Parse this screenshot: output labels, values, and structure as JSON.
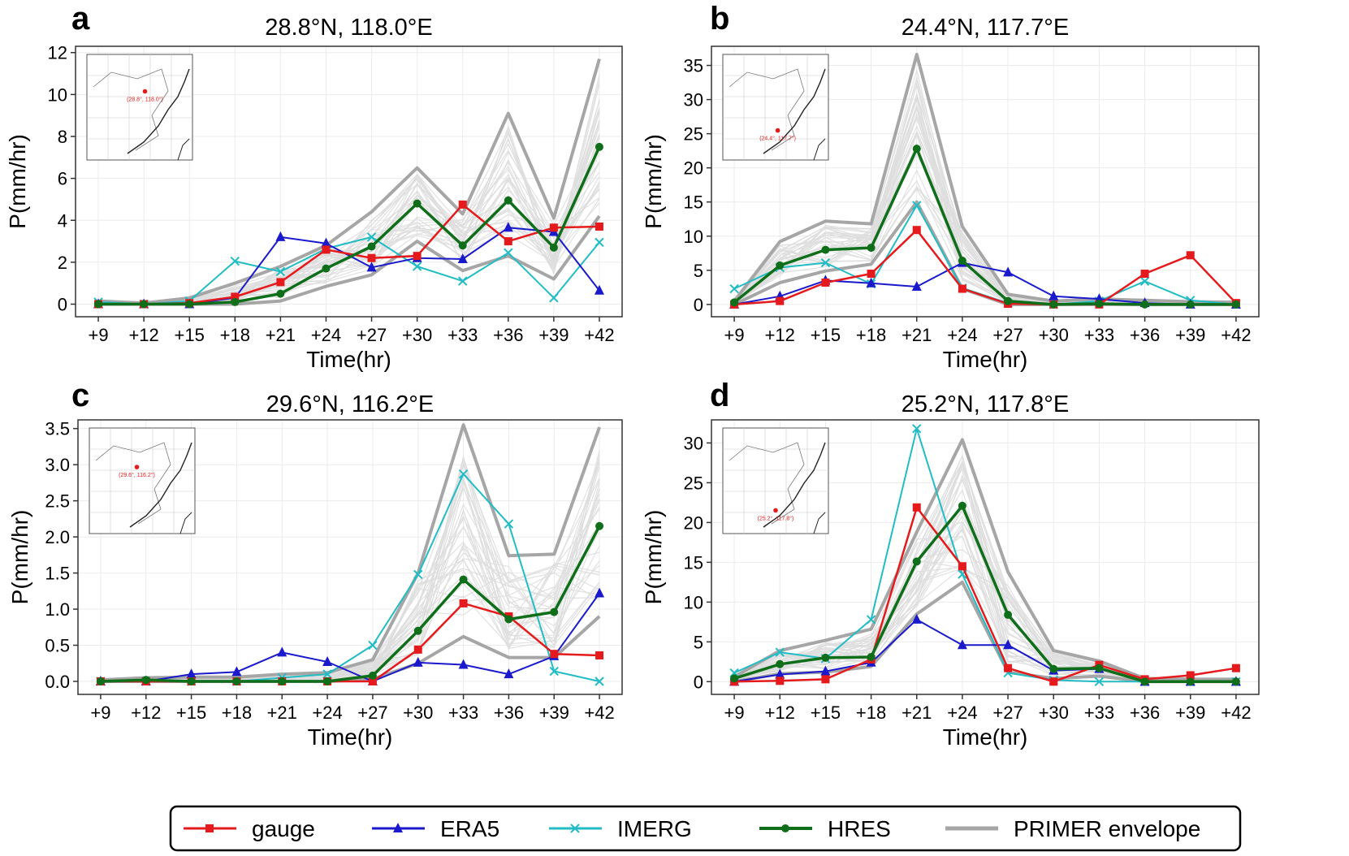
{
  "figure": {
    "legend": [
      {
        "key": "gauge",
        "label": "gauge",
        "color": "#e41a1c",
        "marker": "square"
      },
      {
        "key": "era5",
        "label": "ERA5",
        "color": "#1a1acc",
        "marker": "triangle"
      },
      {
        "key": "imerg",
        "label": "IMERG",
        "color": "#22bcc4",
        "marker": "x"
      },
      {
        "key": "hres",
        "label": "HRES",
        "color": "#0f6e1a",
        "marker": "circle"
      },
      {
        "key": "primer",
        "label": "PRIMER envelope",
        "color": "#a6a6a6",
        "marker": "none"
      }
    ]
  },
  "chart_data": [
    {
      "panel": "a",
      "type": "line",
      "title": "28.8°N, 118.0°E",
      "xlabel": "Time(hr)",
      "ylabel": "P(mm/hr)",
      "categories": [
        "+9",
        "+12",
        "+15",
        "+18",
        "+21",
        "+24",
        "+27",
        "+30",
        "+33",
        "+36",
        "+39",
        "+42"
      ],
      "ylim": [
        -0.6,
        12.3
      ],
      "yticks": [
        0,
        2,
        4,
        6,
        8,
        10,
        12
      ],
      "ytick_labels": [
        "0",
        "2",
        "4",
        "6",
        "8",
        "10",
        "12"
      ],
      "inset_label": "(28.8°, 118.0°)",
      "series": [
        {
          "name": "gauge",
          "values": [
            0.0,
            0.0,
            0.05,
            0.35,
            1.05,
            2.6,
            2.2,
            2.3,
            4.75,
            3.0,
            3.65,
            3.7
          ]
        },
        {
          "name": "ERA5",
          "values": [
            0.0,
            0.0,
            0.0,
            0.3,
            3.2,
            2.9,
            1.75,
            2.2,
            2.15,
            3.65,
            3.45,
            0.65
          ]
        },
        {
          "name": "IMERG",
          "values": [
            0.1,
            0.0,
            0.15,
            2.05,
            1.55,
            2.65,
            3.2,
            1.8,
            1.1,
            2.45,
            0.3,
            2.95
          ]
        },
        {
          "name": "HRES",
          "values": [
            0.0,
            0.0,
            0.0,
            0.1,
            0.5,
            1.7,
            2.75,
            4.8,
            2.8,
            4.95,
            2.7,
            7.5
          ]
        }
      ],
      "envelope": {
        "upper": [
          0.15,
          0.05,
          0.3,
          1.0,
          1.8,
          2.8,
          4.4,
          6.5,
          4.3,
          9.1,
          4.1,
          11.7
        ],
        "lower": [
          0.0,
          0.0,
          0.0,
          0.0,
          0.15,
          0.85,
          1.4,
          3.0,
          1.6,
          2.3,
          1.2,
          4.2
        ]
      }
    },
    {
      "panel": "b",
      "type": "line",
      "title": "24.4°N, 117.7°E",
      "xlabel": "Time(hr)",
      "ylabel": "P(mm/hr)",
      "categories": [
        "+9",
        "+12",
        "+15",
        "+18",
        "+21",
        "+24",
        "+27",
        "+30",
        "+33",
        "+36",
        "+39",
        "+42"
      ],
      "ylim": [
        -1.8,
        37.8
      ],
      "yticks": [
        0,
        5,
        10,
        15,
        20,
        25,
        30,
        35
      ],
      "ytick_labels": [
        "0",
        "5",
        "10",
        "15",
        "20",
        "25",
        "30",
        "35"
      ],
      "inset_label": "(24.4°, 117.7°)",
      "series": [
        {
          "name": "gauge",
          "values": [
            0.0,
            0.5,
            3.2,
            4.5,
            10.9,
            2.3,
            0.1,
            0.0,
            0.0,
            4.5,
            7.2,
            0.2
          ]
        },
        {
          "name": "ERA5",
          "values": [
            0.0,
            1.2,
            3.5,
            3.1,
            2.6,
            6.1,
            4.7,
            1.2,
            0.8,
            0.2,
            0.0,
            0.0
          ]
        },
        {
          "name": "IMERG",
          "values": [
            2.3,
            5.4,
            6.1,
            3.0,
            14.5,
            2.4,
            0.2,
            0.0,
            0.5,
            3.4,
            0.6,
            0.0
          ]
        },
        {
          "name": "HRES",
          "values": [
            0.3,
            5.7,
            8.0,
            8.3,
            22.8,
            6.4,
            0.5,
            0.0,
            0.1,
            0.0,
            0.0,
            0.0
          ]
        }
      ],
      "envelope": {
        "upper": [
          0.5,
          9.2,
          12.2,
          11.8,
          36.6,
          11.4,
          1.5,
          0.5,
          0.8,
          0.6,
          0.4,
          0.3
        ],
        "lower": [
          0.0,
          3.2,
          4.9,
          5.9,
          15.0,
          2.3,
          0.0,
          0.0,
          0.0,
          0.0,
          0.0,
          0.0
        ]
      }
    },
    {
      "panel": "c",
      "type": "line",
      "title": "29.6°N, 116.2°E",
      "xlabel": "Time(hr)",
      "ylabel": "P(mm/hr)",
      "categories": [
        "+9",
        "+12",
        "+15",
        "+18",
        "+21",
        "+24",
        "+27",
        "+30",
        "+33",
        "+36",
        "+39",
        "+42"
      ],
      "ylim": [
        -0.18,
        3.62
      ],
      "yticks": [
        0,
        0.5,
        1,
        1.5,
        2,
        2.5,
        3,
        3.5
      ],
      "ytick_labels": [
        "0.0",
        "0.5",
        "1.0",
        "1.5",
        "2.0",
        "2.5",
        "3.0",
        "3.5"
      ],
      "inset_label": "(29.6°, 116.2°)",
      "series": [
        {
          "name": "gauge",
          "values": [
            0.0,
            0.0,
            0.0,
            0.0,
            0.0,
            0.0,
            0.0,
            0.44,
            1.08,
            0.9,
            0.38,
            0.36
          ]
        },
        {
          "name": "ERA5",
          "values": [
            0.0,
            0.0,
            0.1,
            0.13,
            0.4,
            0.27,
            0.0,
            0.26,
            0.23,
            0.1,
            0.35,
            1.22
          ]
        },
        {
          "name": "IMERG",
          "values": [
            0.0,
            0.0,
            0.0,
            0.0,
            0.05,
            0.1,
            0.5,
            1.48,
            2.87,
            2.18,
            0.14,
            0.0
          ]
        },
        {
          "name": "HRES",
          "values": [
            0.0,
            0.02,
            0.0,
            0.0,
            0.0,
            0.0,
            0.08,
            0.7,
            1.41,
            0.86,
            0.96,
            2.15
          ]
        }
      ],
      "envelope": {
        "upper": [
          0.02,
          0.05,
          0.06,
          0.06,
          0.1,
          0.12,
          0.3,
          1.5,
          3.55,
          1.74,
          1.76,
          3.52
        ],
        "lower": [
          0.0,
          0.0,
          0.0,
          0.0,
          0.0,
          0.0,
          0.03,
          0.25,
          0.62,
          0.33,
          0.33,
          0.9
        ]
      }
    },
    {
      "panel": "d",
      "type": "line",
      "title": "25.2°N, 117.8°E",
      "xlabel": "Time(hr)",
      "ylabel": "P(mm/hr)",
      "categories": [
        "+9",
        "+12",
        "+15",
        "+18",
        "+21",
        "+24",
        "+27",
        "+30",
        "+33",
        "+36",
        "+39",
        "+42"
      ],
      "ylim": [
        -1.6,
        32.9
      ],
      "yticks": [
        0,
        5,
        10,
        15,
        20,
        25,
        30
      ],
      "ytick_labels": [
        "0",
        "5",
        "10",
        "15",
        "20",
        "25",
        "30"
      ],
      "inset_label": "(25.2°, 117.8°)",
      "series": [
        {
          "name": "gauge",
          "values": [
            0.0,
            0.1,
            0.3,
            2.8,
            21.9,
            14.5,
            1.7,
            0.0,
            2.1,
            0.3,
            0.8,
            1.7
          ]
        },
        {
          "name": "ERA5",
          "values": [
            0.0,
            0.9,
            1.3,
            2.4,
            7.8,
            4.6,
            4.6,
            1.4,
            1.6,
            0.0,
            0.0,
            0.0
          ]
        },
        {
          "name": "IMERG",
          "values": [
            1.1,
            3.7,
            2.9,
            7.8,
            31.8,
            13.5,
            1.1,
            0.2,
            0.0,
            0.0,
            0.0,
            0.0
          ]
        },
        {
          "name": "HRES",
          "values": [
            0.4,
            2.2,
            3.0,
            3.1,
            15.1,
            22.1,
            8.4,
            1.6,
            1.7,
            0.0,
            0.0,
            0.0
          ]
        }
      ],
      "envelope": {
        "upper": [
          0.6,
          3.9,
          5.2,
          6.6,
          18.8,
          30.4,
          13.8,
          3.9,
          2.6,
          0.4,
          0.3,
          0.3
        ],
        "lower": [
          0.0,
          1.0,
          1.2,
          1.9,
          8.5,
          12.5,
          1.2,
          0.4,
          0.7,
          0.0,
          0.0,
          0.0
        ]
      }
    }
  ]
}
